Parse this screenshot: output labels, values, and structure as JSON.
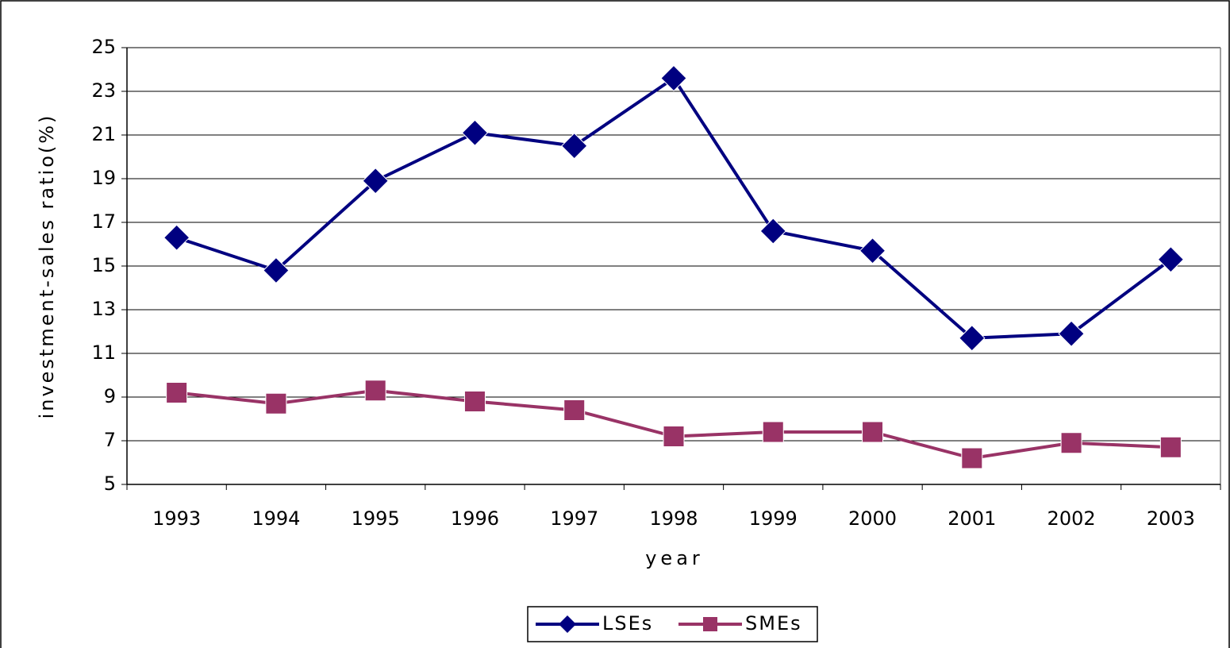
{
  "chart_data": {
    "type": "line",
    "x_label": "year",
    "y_label": "investment-sales ratio(%)",
    "categories": [
      "1993",
      "1994",
      "1995",
      "1996",
      "1997",
      "1998",
      "1999",
      "2000",
      "2001",
      "2002",
      "2003"
    ],
    "series": [
      {
        "name": "LSEs",
        "color": "#000080",
        "marker": "diamond",
        "values": [
          16.3,
          14.8,
          18.9,
          21.1,
          20.5,
          23.6,
          16.6,
          15.7,
          11.7,
          11.9,
          15.3
        ]
      },
      {
        "name": "SMEs",
        "color": "#993366",
        "marker": "square",
        "values": [
          9.2,
          8.7,
          9.3,
          8.8,
          8.4,
          7.2,
          7.4,
          7.4,
          6.2,
          6.9,
          6.7
        ]
      }
    ],
    "ylim": [
      5,
      25
    ],
    "yticks": [
      5,
      7,
      9,
      11,
      13,
      15,
      17,
      19,
      21,
      23,
      25
    ],
    "grid": true,
    "legend": "bottom"
  }
}
